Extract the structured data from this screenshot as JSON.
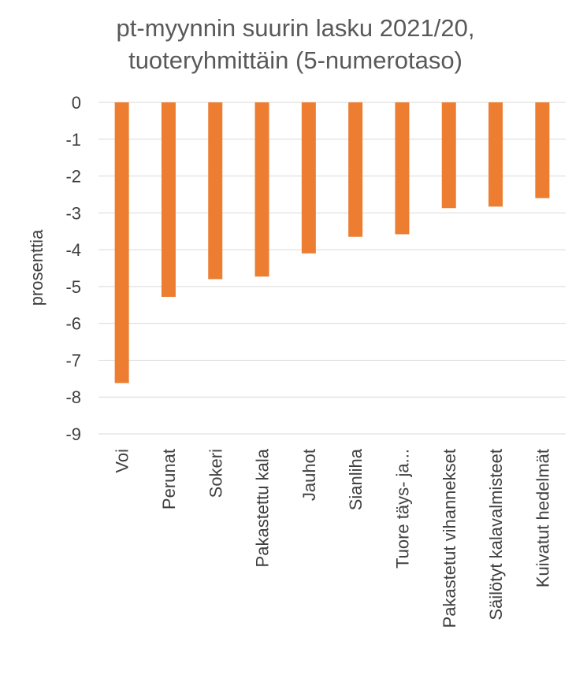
{
  "chart_data": {
    "type": "bar",
    "title_lines": [
      "pt-myynnin suurin lasku 2021/20,",
      "tuoteryhmittäin (5-numerotaso)"
    ],
    "ylabel": "prosenttia",
    "xlabel": "",
    "categories": [
      "Voi",
      "Perunat",
      "Sokeri",
      "Pakastettu kala",
      "Jauhot",
      "Sianliha",
      "Tuore täys- ja...",
      "Pakastetut vihannekset",
      "Säilötyt kalavalmisteet",
      "Kuivatut hedelmät"
    ],
    "values": [
      -7.62,
      -5.28,
      -4.8,
      -4.73,
      -4.1,
      -3.65,
      -3.58,
      -2.87,
      -2.83,
      -2.6
    ],
    "ylim": [
      -9,
      0
    ],
    "yticks": [
      "0",
      "-1",
      "-2",
      "-3",
      "-4",
      "-5",
      "-6",
      "-7",
      "-8",
      "-9"
    ],
    "grid": true,
    "legend": "none",
    "bar_color": "#ED7D31",
    "grid_color": "#D9D9D9"
  }
}
